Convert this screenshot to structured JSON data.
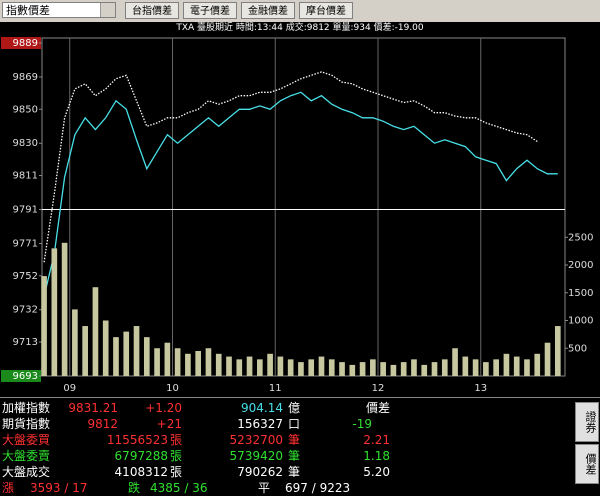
{
  "toolbar": {
    "dropdown": "指數價差",
    "buttons": [
      "台指價差",
      "電子價差",
      "金融價差",
      "摩台價差"
    ]
  },
  "info": "TXA 臺股期近 時間:13:44 成交:9812 單量:934 價差:-19.00",
  "chart_data": {
    "type": "line",
    "x": [
      8.75,
      8.85,
      8.95,
      9.05,
      9.15,
      9.25,
      9.35,
      9.45,
      9.55,
      9.65,
      9.75,
      9.85,
      9.95,
      10.05,
      10.15,
      10.25,
      10.35,
      10.45,
      10.55,
      10.65,
      10.75,
      10.85,
      10.95,
      11.05,
      11.15,
      11.25,
      11.35,
      11.45,
      11.55,
      11.65,
      11.75,
      11.85,
      11.95,
      12.05,
      12.15,
      12.25,
      12.35,
      12.45,
      12.55,
      12.65,
      12.75,
      12.85,
      12.95,
      13.05,
      13.15,
      13.25,
      13.35,
      13.45,
      13.55,
      13.65,
      13.75
    ],
    "xlim": [
      8.73,
      13.82
    ],
    "xticks": [
      {
        "value": 9,
        "label": "09"
      },
      10,
      11,
      12,
      13
    ],
    "ylim": [
      9693,
      9889
    ],
    "yticks": [
      9693,
      9713,
      9732,
      9752,
      9771,
      9791,
      9811,
      9830,
      9850,
      9869,
      9889
    ],
    "y2lim": [
      0,
      6000
    ],
    "y2ticks": [
      500,
      1000,
      1500,
      2000,
      2500
    ],
    "series": [
      {
        "color": "#ffffff",
        "dashed": true,
        "values": [
          9760,
          9800,
          9845,
          9862,
          9865,
          9858,
          9862,
          9868,
          9870,
          9855,
          9840,
          9842,
          9845,
          9845,
          9848,
          9850,
          9855,
          9853,
          9855,
          9858,
          9858,
          9860,
          9860,
          9862,
          9865,
          9868,
          9870,
          9872,
          9870,
          9866,
          9865,
          9862,
          9860,
          9858,
          9856,
          9854,
          9855,
          9852,
          9848,
          9848,
          9846,
          9845,
          9845,
          9842,
          9840,
          9838,
          9836,
          9835,
          9831,
          null,
          null
        ]
      },
      {
        "color": "#48e0e8",
        "values": [
          9740,
          9765,
          9810,
          9835,
          9845,
          9838,
          9845,
          9855,
          9850,
          9832,
          9815,
          9825,
          9835,
          9830,
          9835,
          9840,
          9845,
          9840,
          9845,
          9850,
          9850,
          9852,
          9850,
          9855,
          9858,
          9860,
          9855,
          9858,
          9853,
          9850,
          9848,
          9845,
          9845,
          9843,
          9840,
          9838,
          9840,
          9835,
          9830,
          9832,
          9830,
          9828,
          9822,
          9820,
          9818,
          9808,
          9815,
          9820,
          9815,
          9812,
          9812
        ]
      },
      {
        "color": "#c8c8a0",
        "type": "bar",
        "axis": "y2",
        "values": [
          1800,
          2300,
          2400,
          1200,
          900,
          1600,
          1000,
          700,
          800,
          900,
          700,
          500,
          600,
          500,
          400,
          450,
          500,
          400,
          350,
          300,
          350,
          300,
          400,
          350,
          300,
          250,
          300,
          350,
          300,
          250,
          200,
          250,
          300,
          250,
          200,
          250,
          300,
          200,
          250,
          300,
          500,
          350,
          300,
          250,
          300,
          400,
          350,
          300,
          400,
          600,
          900
        ]
      }
    ]
  },
  "quotes": {
    "rows": [
      [
        "加權指數",
        "9831.21",
        "+1.20",
        "904.14",
        "億",
        "價差"
      ],
      [
        "期貨指數",
        "9812",
        "+21",
        "156327",
        "口",
        "-19"
      ],
      [
        "大盤委買",
        "11556523",
        "張",
        "5232700",
        "筆",
        "2.21"
      ],
      [
        "大盤委賣",
        "6797288",
        "張",
        "5739420",
        "筆",
        "1.18"
      ],
      [
        "大盤成交",
        "4108312",
        "張",
        "790262",
        "筆",
        "5.20"
      ]
    ],
    "breadth": [
      "漲",
      "3593 / 17",
      "跌",
      "4385 / 36",
      "平",
      "697 / 9223"
    ],
    "side_buttons": [
      "證券",
      "價差"
    ]
  }
}
